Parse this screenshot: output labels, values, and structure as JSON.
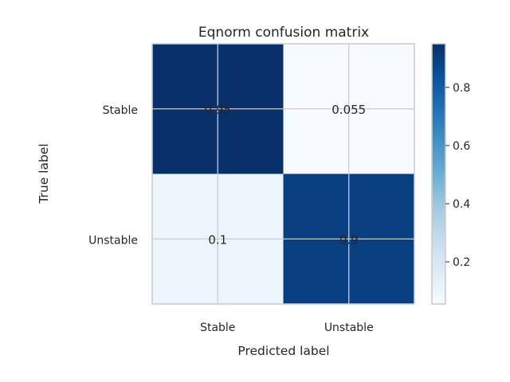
{
  "chart_data": {
    "type": "heatmap",
    "title": "Eqnorm confusion matrix",
    "xlabel": "Predicted label",
    "ylabel": "True label",
    "x_categories": [
      "Stable",
      "Unstable"
    ],
    "y_categories": [
      "Stable",
      "Unstable"
    ],
    "values": [
      [
        0.95,
        0.055
      ],
      [
        0.1,
        0.9
      ]
    ],
    "value_labels": [
      [
        "0.95",
        "0.055"
      ],
      [
        "0.1",
        "0.9"
      ]
    ],
    "colormap": "Blues",
    "colorbar": {
      "range": [
        0.055,
        0.95
      ],
      "ticks": [
        0.2,
        0.4,
        0.6,
        0.8
      ],
      "tick_labels": [
        "0.2",
        "0.4",
        "0.6",
        "0.8"
      ]
    },
    "grid": true
  }
}
